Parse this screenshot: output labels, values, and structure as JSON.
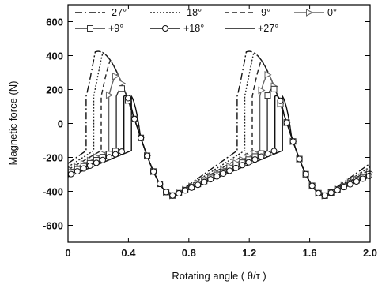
{
  "chart_data": {
    "type": "line",
    "title": "",
    "xlabel": "Rotating angle ( θ/τ )",
    "ylabel": "Magnetic force (N)",
    "xlim": [
      0,
      2.0
    ],
    "ylim": [
      -700,
      700
    ],
    "xticks": [
      "0",
      "0.4",
      "0.8",
      "1.2",
      "1.6",
      "2.0"
    ],
    "xtick_values": [
      0,
      0.4,
      0.8,
      1.2,
      1.6,
      2.0
    ],
    "yticks": [
      "600",
      "400",
      "200",
      "0",
      "-200",
      "-400",
      "-600"
    ],
    "ytick_values": [
      600,
      400,
      200,
      0,
      -200,
      -400,
      -600
    ],
    "grid": false,
    "legend_position": "top",
    "waveform": {
      "period": 1.0,
      "amplitude": 425,
      "peak_x": 0.2,
      "trough_x": 0.7,
      "jump_to": 160
    },
    "series": [
      {
        "name": "-27°",
        "jump_x": 0.12,
        "color": "#111111",
        "dash": "9,3,2,3",
        "marker": "none"
      },
      {
        "name": "-18°",
        "jump_x": 0.17,
        "color": "#222222",
        "dash": "2,2",
        "marker": "none"
      },
      {
        "name": "-9°",
        "jump_x": 0.22,
        "color": "#222222",
        "dash": "6,4",
        "marker": "none"
      },
      {
        "name": "0°",
        "jump_x": 0.27,
        "color": "#666666",
        "dash": "",
        "marker": "triangle"
      },
      {
        "name": "+9°",
        "jump_x": 0.32,
        "color": "#333333",
        "dash": "",
        "marker": "square"
      },
      {
        "name": "+18°",
        "jump_x": 0.37,
        "color": "#111111",
        "dash": "",
        "marker": "circle"
      },
      {
        "name": "+27°",
        "jump_x": 0.42,
        "color": "#111111",
        "dash": "",
        "marker": "none"
      }
    ]
  }
}
